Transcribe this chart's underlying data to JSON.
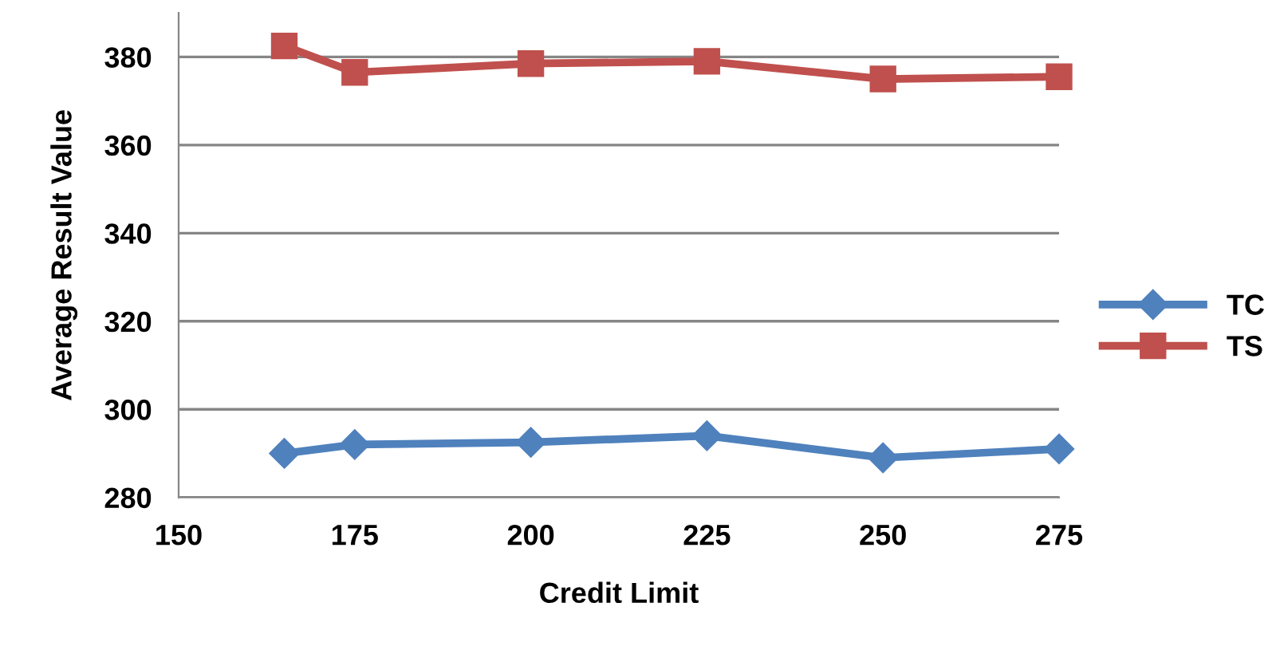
{
  "chart_data": {
    "type": "line",
    "xlabel": "Credit Limit",
    "ylabel": "Average Result Value",
    "x": [
      165,
      175,
      200,
      225,
      250,
      275
    ],
    "series": [
      {
        "name": "TC",
        "color": "#4f81bd",
        "marker": "diamond",
        "values": [
          290,
          292,
          292.5,
          294,
          289,
          291
        ]
      },
      {
        "name": "TS",
        "color": "#c0504d",
        "marker": "square",
        "values": [
          382.5,
          376.5,
          378.5,
          379,
          375,
          375.5
        ]
      }
    ],
    "xlim": [
      150,
      275
    ],
    "xticks": [
      150,
      175,
      200,
      225,
      250,
      275
    ],
    "ylim": [
      280,
      390
    ],
    "yticks": [
      280,
      300,
      320,
      340,
      360,
      380
    ],
    "grid": "y",
    "legend": "right",
    "line_style": "solid"
  }
}
